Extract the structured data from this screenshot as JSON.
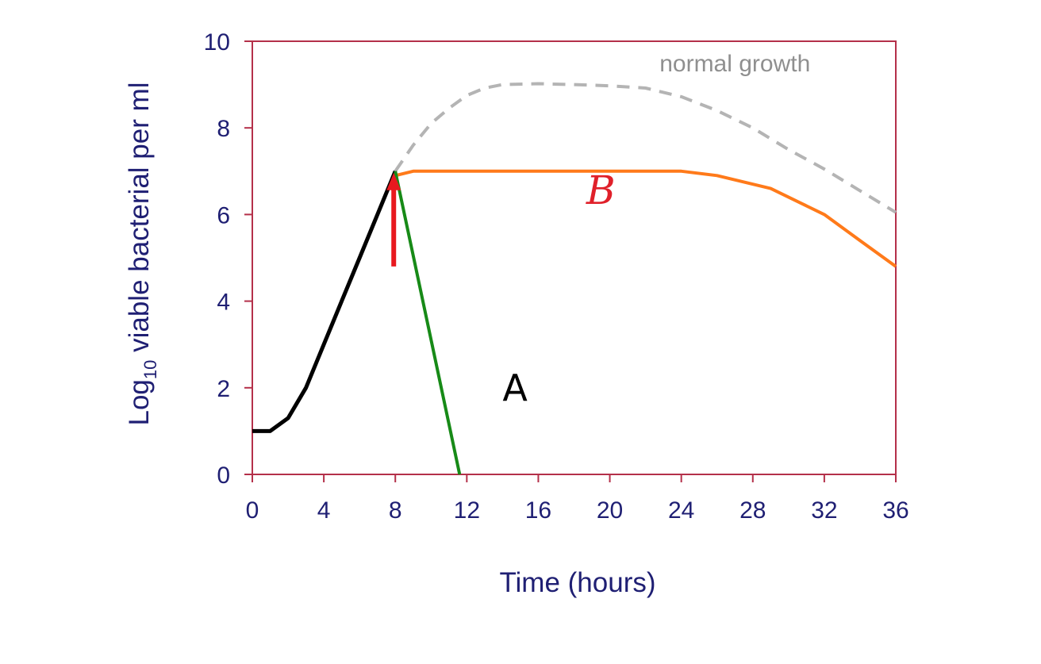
{
  "chart_data": {
    "type": "line",
    "title": "",
    "xlabel": "Time (hours)",
    "ylabel": {
      "prefix": "Log",
      "subscript": "10",
      "suffix": " viable bacterial per ml"
    },
    "xlim": [
      0,
      36
    ],
    "ylim": [
      0,
      10
    ],
    "xticks": [
      0,
      4,
      8,
      12,
      16,
      20,
      24,
      28,
      32,
      36
    ],
    "yticks": [
      0,
      2,
      4,
      6,
      8,
      10
    ],
    "grid": false,
    "series": [
      {
        "key": "growth",
        "color": "#000000",
        "style": "solid",
        "points": [
          [
            0,
            1.0
          ],
          [
            1,
            1.0
          ],
          [
            2,
            1.3
          ],
          [
            3,
            2.0
          ],
          [
            4,
            3.0
          ],
          [
            5,
            4.0
          ],
          [
            6,
            5.0
          ],
          [
            7,
            6.0
          ],
          [
            8,
            7.0
          ]
        ]
      },
      {
        "key": "normal",
        "color": "#b4b4b4",
        "style": "dashed",
        "points": [
          [
            8,
            7.0
          ],
          [
            9,
            7.6
          ],
          [
            10,
            8.1
          ],
          [
            11,
            8.45
          ],
          [
            12,
            8.75
          ],
          [
            13,
            8.92
          ],
          [
            14,
            9.0
          ],
          [
            16,
            9.02
          ],
          [
            18,
            9.0
          ],
          [
            20,
            8.97
          ],
          [
            22,
            8.92
          ],
          [
            24,
            8.72
          ],
          [
            26,
            8.4
          ],
          [
            28,
            8.0
          ],
          [
            30,
            7.5
          ],
          [
            32,
            7.05
          ],
          [
            34,
            6.55
          ],
          [
            36,
            6.05
          ]
        ]
      },
      {
        "key": "B",
        "color": "#ff7a1a",
        "style": "solid",
        "points": [
          [
            8,
            6.9
          ],
          [
            9,
            7.0
          ],
          [
            12,
            7.0
          ],
          [
            16,
            7.0
          ],
          [
            20,
            7.0
          ],
          [
            24,
            7.0
          ],
          [
            26,
            6.9
          ],
          [
            29,
            6.6
          ],
          [
            32,
            6.0
          ],
          [
            34,
            5.4
          ],
          [
            36,
            4.8
          ]
        ]
      },
      {
        "key": "A",
        "color": "#178a17",
        "style": "solid",
        "points": [
          [
            8,
            7.0
          ],
          [
            11.6,
            0.0
          ]
        ]
      }
    ],
    "annotations": [
      {
        "key": "normal_label",
        "text": "normal growth",
        "x": 27,
        "y": 9.3,
        "color": "#8f8f8f"
      },
      {
        "key": "a_label",
        "text": "A",
        "x": 14.7,
        "y": 1.7,
        "color": "#000000"
      },
      {
        "key": "b_label",
        "text": "B",
        "x": 19.5,
        "y": 6.25,
        "color": "#e0202a"
      }
    ],
    "arrow": {
      "x": 8,
      "y_from": 4.8,
      "y_to": 7.0,
      "color": "#e8191f"
    },
    "axis_color": "#b4304a",
    "text_color": "#1f1f73"
  }
}
